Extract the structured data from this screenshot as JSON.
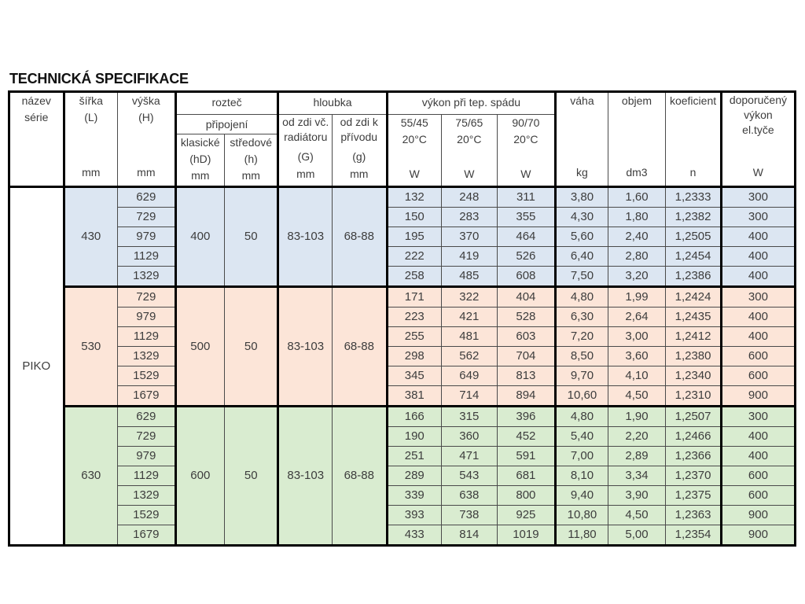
{
  "title": "TECHNICKÁ SPECIFIKACE",
  "colors": {
    "section_blue": "#dce6f2",
    "section_pink": "#fce5d8",
    "section_green": "#d9ecd0",
    "border_thick": "#000000",
    "border_thin": "#4a4a4a",
    "text": "#3d3d3d"
  },
  "header": {
    "nazev": {
      "l1": "název",
      "l2": "série"
    },
    "sirka": {
      "l1": "šířka",
      "l2": "(L)",
      "unit": "mm"
    },
    "vyska": {
      "l1": "výška",
      "l2": "(H)",
      "unit": "mm"
    },
    "roztec": {
      "group": "rozteč",
      "sub": "připojení",
      "klasicke": {
        "l1": "klasické",
        "l2": "(hD)",
        "unit": "mm"
      },
      "stredove": {
        "l1": "středové",
        "l2": "(h)",
        "unit": "mm"
      }
    },
    "hloubka": {
      "group": "hloubka",
      "od_radiatoru": {
        "l1": "od zdi vč.",
        "l2": "radiátoru",
        "l3": "(G)",
        "unit": "mm"
      },
      "od_privodu": {
        "l1": "od zdi k",
        "l2": "přívodu",
        "l3": "(g)",
        "unit": "mm"
      }
    },
    "vykon": {
      "group": "výkon při tep.  spádu",
      "c1": "55/45",
      "c2": "75/65",
      "c3": "90/70",
      "temp": "20°C",
      "unit": "W"
    },
    "vaha": {
      "l1": "váha",
      "unit": "kg"
    },
    "objem": {
      "l1": "objem",
      "unit": "dm3"
    },
    "koeficient": {
      "l1": "koeficient",
      "unit": "n"
    },
    "doporuceny": {
      "l1": "doporučený",
      "l2": "výkon",
      "l3": "el.tyče",
      "unit": "W"
    }
  },
  "table": {
    "series_label": "PIKO",
    "sections": [
      {
        "color": "#dce6f2",
        "sirka": "430",
        "roztec_klasicke": "400",
        "roztec_stredove": "50",
        "hloubka_od_radiatoru": "83-103",
        "hloubka_od_privodu": "68-88",
        "rows": [
          {
            "vyska": "629",
            "w5545": "132",
            "w7565": "248",
            "w9070": "311",
            "vaha": "3,80",
            "objem": "1,60",
            "koeficient": "1,2333",
            "el": "300"
          },
          {
            "vyska": "729",
            "w5545": "150",
            "w7565": "283",
            "w9070": "355",
            "vaha": "4,30",
            "objem": "1,80",
            "koeficient": "1,2382",
            "el": "300"
          },
          {
            "vyska": "979",
            "w5545": "195",
            "w7565": "370",
            "w9070": "464",
            "vaha": "5,60",
            "objem": "2,40",
            "koeficient": "1,2505",
            "el": "400"
          },
          {
            "vyska": "1129",
            "w5545": "222",
            "w7565": "419",
            "w9070": "526",
            "vaha": "6,40",
            "objem": "2,80",
            "koeficient": "1,2454",
            "el": "400"
          },
          {
            "vyska": "1329",
            "w5545": "258",
            "w7565": "485",
            "w9070": "608",
            "vaha": "7,50",
            "objem": "3,20",
            "koeficient": "1,2386",
            "el": "400"
          }
        ]
      },
      {
        "color": "#fce5d8",
        "sirka": "530",
        "roztec_klasicke": "500",
        "roztec_stredove": "50",
        "hloubka_od_radiatoru": "83-103",
        "hloubka_od_privodu": "68-88",
        "rows": [
          {
            "vyska": "729",
            "w5545": "171",
            "w7565": "322",
            "w9070": "404",
            "vaha": "4,80",
            "objem": "1,99",
            "koeficient": "1,2424",
            "el": "300"
          },
          {
            "vyska": "979",
            "w5545": "223",
            "w7565": "421",
            "w9070": "528",
            "vaha": "6,30",
            "objem": "2,64",
            "koeficient": "1,2435",
            "el": "400"
          },
          {
            "vyska": "1129",
            "w5545": "255",
            "w7565": "481",
            "w9070": "603",
            "vaha": "7,20",
            "objem": "3,00",
            "koeficient": "1,2412",
            "el": "400"
          },
          {
            "vyska": "1329",
            "w5545": "298",
            "w7565": "562",
            "w9070": "704",
            "vaha": "8,50",
            "objem": "3,60",
            "koeficient": "1,2380",
            "el": "600"
          },
          {
            "vyska": "1529",
            "w5545": "345",
            "w7565": "649",
            "w9070": "813",
            "vaha": "9,70",
            "objem": "4,10",
            "koeficient": "1,2340",
            "el": "600"
          },
          {
            "vyska": "1679",
            "w5545": "381",
            "w7565": "714",
            "w9070": "894",
            "vaha": "10,60",
            "objem": "4,50",
            "koeficient": "1,2310",
            "el": "900"
          }
        ]
      },
      {
        "color": "#d9ecd0",
        "sirka": "630",
        "roztec_klasicke": "600",
        "roztec_stredove": "50",
        "hloubka_od_radiatoru": "83-103",
        "hloubka_od_privodu": "68-88",
        "rows": [
          {
            "vyska": "629",
            "w5545": "166",
            "w7565": "315",
            "w9070": "396",
            "vaha": "4,80",
            "objem": "1,90",
            "koeficient": "1,2507",
            "el": "300"
          },
          {
            "vyska": "729",
            "w5545": "190",
            "w7565": "360",
            "w9070": "452",
            "vaha": "5,40",
            "objem": "2,20",
            "koeficient": "1,2466",
            "el": "400"
          },
          {
            "vyska": "979",
            "w5545": "251",
            "w7565": "471",
            "w9070": "591",
            "vaha": "7,00",
            "objem": "2,89",
            "koeficient": "1,2366",
            "el": "400"
          },
          {
            "vyska": "1129",
            "w5545": "289",
            "w7565": "543",
            "w9070": "681",
            "vaha": "8,10",
            "objem": "3,34",
            "koeficient": "1,2370",
            "el": "600"
          },
          {
            "vyska": "1329",
            "w5545": "339",
            "w7565": "638",
            "w9070": "800",
            "vaha": "9,40",
            "objem": "3,90",
            "koeficient": "1,2375",
            "el": "600"
          },
          {
            "vyska": "1529",
            "w5545": "393",
            "w7565": "738",
            "w9070": "925",
            "vaha": "10,80",
            "objem": "4,50",
            "koeficient": "1,2363",
            "el": "900"
          },
          {
            "vyska": "1679",
            "w5545": "433",
            "w7565": "814",
            "w9070": "1019",
            "vaha": "11,80",
            "objem": "5,00",
            "koeficient": "1,2354",
            "el": "900"
          }
        ]
      }
    ]
  }
}
